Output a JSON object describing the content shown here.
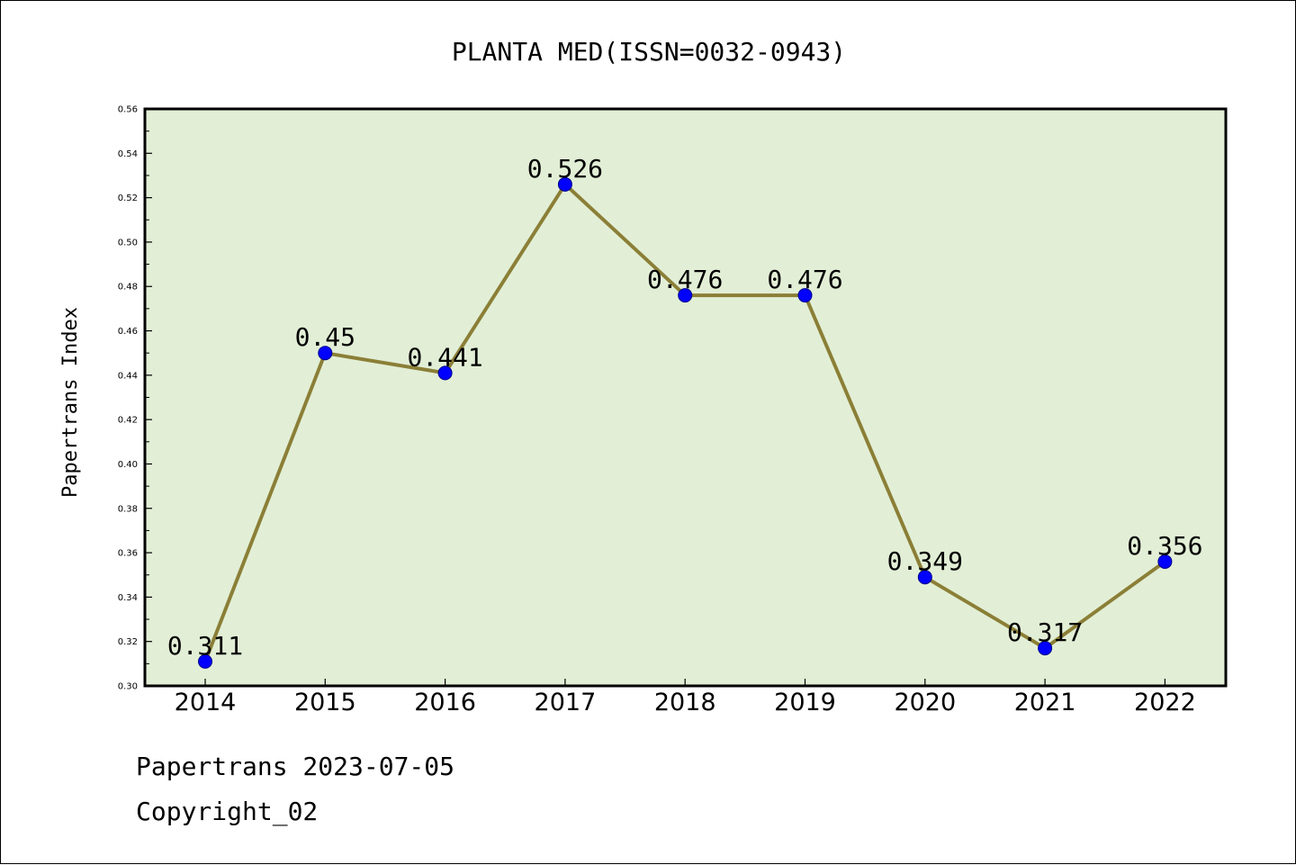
{
  "chart_data": {
    "type": "line",
    "title": "PLANTA MED(ISSN=0032-0943)",
    "xlabel": "",
    "ylabel": "Papertrans Index",
    "categories": [
      "2014",
      "2015",
      "2016",
      "2017",
      "2018",
      "2019",
      "2020",
      "2021",
      "2022"
    ],
    "values": [
      0.311,
      0.45,
      0.441,
      0.526,
      0.476,
      0.476,
      0.349,
      0.317,
      0.356
    ],
    "data_labels": [
      "0.311",
      "0.45",
      "0.441",
      "0.526",
      "0.476",
      "0.476",
      "0.349",
      "0.317",
      "0.356"
    ],
    "ylim": [
      0.3,
      0.56
    ],
    "yticks": [
      "0.30",
      "0.32",
      "0.34",
      "0.36",
      "0.38",
      "0.40",
      "0.42",
      "0.44",
      "0.46",
      "0.48",
      "0.50",
      "0.52",
      "0.54",
      "0.56"
    ],
    "grid": false,
    "colors": {
      "plot_bg": "#e2efd6",
      "line": "#8b7f37",
      "marker": "#0000ff"
    }
  },
  "footer": {
    "line1": "Papertrans 2023-07-05",
    "line2": "Copyright_02"
  }
}
